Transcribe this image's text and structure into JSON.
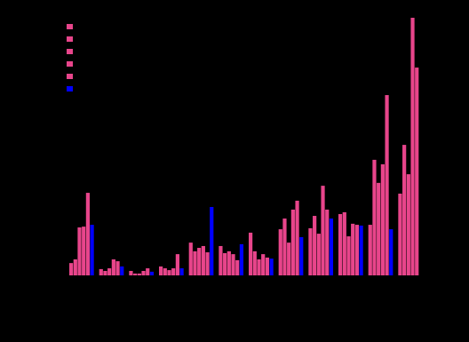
{
  "chart_data": {
    "type": "bar",
    "categories": [
      null,
      null,
      null,
      null,
      null,
      null,
      null,
      null,
      null,
      null,
      null,
      null
    ],
    "series": [
      {
        "color": "#e8458b",
        "values": [
          4.7,
          2.4,
          1.7,
          3.4,
          12.5,
          11.2,
          16.3,
          17.6,
          18.0,
          23.4,
          19.3,
          31.2
        ]
      },
      {
        "color": "#e8458b",
        "values": [
          6.1,
          1.7,
          0.7,
          2.7,
          9.2,
          8.5,
          9.2,
          21.7,
          22.7,
          24.1,
          44.1,
          49.8
        ]
      },
      {
        "color": "#e8458b",
        "values": [
          18.3,
          2.7,
          0.7,
          2.0,
          10.5,
          9.2,
          6.1,
          12.5,
          15.9,
          14.9,
          35.3,
          38.6
        ]
      },
      {
        "color": "#e8458b",
        "values": [
          18.6,
          6.1,
          1.7,
          2.7,
          11.2,
          8.1,
          8.1,
          25.1,
          34.2,
          19.7,
          42.4,
          98.3
        ]
      },
      {
        "color": "#e8458b",
        "values": [
          31.5,
          5.4,
          2.7,
          8.1,
          8.8,
          5.8,
          6.8,
          28.5,
          25.1,
          19.3,
          68.8,
          79.3
        ]
      },
      {
        "color": "#0000ff",
        "values": [
          19.3,
          3.4,
          1.4,
          2.7,
          26.1,
          11.9,
          6.4,
          14.6,
          21.7,
          19.0,
          17.6,
          null
        ]
      }
    ],
    "ylim": [
      0,
      100
    ],
    "tick_labels": false,
    "legend": "upper left"
  }
}
